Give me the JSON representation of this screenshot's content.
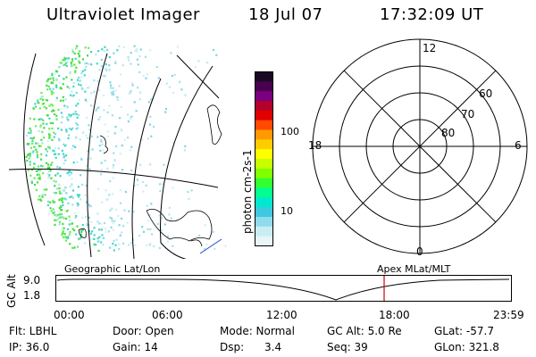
{
  "header": {
    "instrument": "Ultraviolet Imager",
    "date": "18 Jul 07",
    "time": "17:32:09 UT"
  },
  "colorbar": {
    "label": "photon cm-2s-1",
    "ticks": [
      "100",
      "10"
    ],
    "colors": [
      "#1a0a24",
      "#4a0050",
      "#7a0080",
      "#b4002a",
      "#e00000",
      "#ff4a00",
      "#ff9900",
      "#ffcc00",
      "#ffff00",
      "#c8ff00",
      "#80ff00",
      "#30ff30",
      "#00ff90",
      "#00e8d0",
      "#40c8e0",
      "#90dcec",
      "#c8eef4",
      "#e8f6f8"
    ]
  },
  "polar_plot": {
    "mlt_labels": {
      "top": "12",
      "left": "18",
      "right": "6",
      "bottom": "0"
    },
    "lat_labels": [
      "60",
      "70",
      "80"
    ]
  },
  "timeline": {
    "left_title": "Geographic Lat/Lon",
    "right_title": "Apex MLat/MLT",
    "axis_title": "GC Alt",
    "y_labels": [
      "9.0",
      "1.8"
    ],
    "x_labels": [
      "00:00",
      "06:00",
      "12:00",
      "18:00",
      "23:59"
    ],
    "marker_color": "#d00000"
  },
  "info": {
    "row1": [
      "Flt: LBHL",
      "Door: Open",
      "Mode: Normal",
      "GC Alt: 5.0 Re",
      "GLat: -57.7"
    ],
    "row2": [
      "IP: 36.0",
      "Gain: 14",
      "Dsp:      3.4",
      "Seq: 39",
      "GLon: 321.8"
    ]
  }
}
